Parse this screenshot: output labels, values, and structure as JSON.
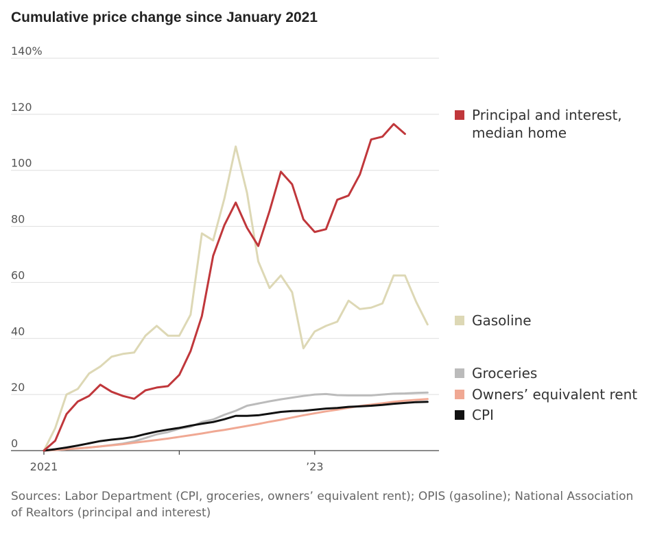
{
  "title": "Cumulative price change since January 2021",
  "source": "Sources: Labor Department (CPI, groceries, owners’ equivalent rent); OPIS (gasoline); National Association of Realtors (principal and interest)",
  "chart_data": {
    "type": "line",
    "title": "Cumulative price change since January 2021",
    "xlabel": "",
    "ylabel": "",
    "grid": true,
    "legend_position": "right",
    "ylim": [
      0,
      140
    ],
    "yticks": [
      0,
      20,
      40,
      60,
      80,
      100,
      120,
      140
    ],
    "ytick_labels": [
      "0",
      "20",
      "40",
      "60",
      "80",
      "100",
      "120",
      "140%"
    ],
    "x_start": "2021-01",
    "x_count": 35,
    "x_ticks": [
      {
        "index": 0,
        "label": "2021",
        "labeled": true
      },
      {
        "index": 12,
        "label": "",
        "labeled": false
      },
      {
        "index": 24,
        "label": "’23",
        "labeled": true
      }
    ],
    "series": [
      {
        "name": "Gasoline",
        "legend_label": "Gasoline",
        "color": "#ddd8b5",
        "values": [
          0,
          8,
          20,
          22,
          27.5,
          30,
          33.5,
          34.5,
          35,
          41,
          44.5,
          41,
          41,
          48.5,
          77.5,
          75,
          90,
          108.5,
          92,
          67.5,
          58,
          62.5,
          56.5,
          36.5,
          42.5,
          44.5,
          46,
          53.5,
          50.5,
          51,
          52.5,
          62.5,
          62.5,
          53,
          45
        ]
      },
      {
        "name": "Groceries",
        "legend_label": "Groceries",
        "color": "#bbbbbb",
        "values": [
          0,
          0.2,
          0.5,
          0.8,
          1.1,
          1.5,
          2.0,
          2.5,
          3.3,
          4.5,
          5.8,
          6.6,
          7.8,
          8.5,
          10.2,
          11.1,
          12.8,
          14.2,
          16.0,
          16.8,
          17.6,
          18.3,
          18.9,
          19.5,
          20.0,
          20.2,
          19.8,
          19.7,
          19.7,
          19.7,
          20.0,
          20.3,
          20.4,
          20.6,
          20.7
        ]
      },
      {
        "name": "Owners’ equivalent rent",
        "legend_label": "Owners’ equivalent rent",
        "color": "#f0a893",
        "values": [
          0,
          0.2,
          0.5,
          0.8,
          1.1,
          1.5,
          1.9,
          2.3,
          2.8,
          3.3,
          3.8,
          4.3,
          4.9,
          5.5,
          6.1,
          6.8,
          7.4,
          8.1,
          8.8,
          9.5,
          10.3,
          11.0,
          11.8,
          12.6,
          13.3,
          14.0,
          14.6,
          15.3,
          15.9,
          16.4,
          16.9,
          17.4,
          17.8,
          18.1,
          18.4
        ]
      },
      {
        "name": "CPI",
        "legend_label": "CPI",
        "color": "#111111",
        "values": [
          0,
          0.5,
          1.1,
          1.8,
          2.6,
          3.4,
          3.9,
          4.3,
          4.9,
          5.9,
          6.8,
          7.5,
          8.1,
          8.9,
          9.6,
          10.2,
          11.2,
          12.4,
          12.4,
          12.6,
          13.2,
          13.8,
          14.1,
          14.2,
          14.6,
          15.0,
          15.2,
          15.6,
          15.8,
          16.0,
          16.3,
          16.7,
          17.0,
          17.3,
          17.4
        ]
      },
      {
        "name": "Principal and interest, median home",
        "legend_label": [
          "Principal and interest,",
          "median home"
        ],
        "color": "#c0373b",
        "values": [
          0,
          3.5,
          13,
          17.5,
          19.5,
          23.5,
          21,
          19.5,
          18.5,
          21.5,
          22.5,
          23,
          27,
          35.5,
          48,
          69.5,
          80.5,
          88.5,
          79.5,
          73,
          85.5,
          99.5,
          95,
          82.5,
          78,
          79,
          89.5,
          91,
          98.5,
          111,
          112,
          116.5,
          113
        ]
      }
    ]
  }
}
